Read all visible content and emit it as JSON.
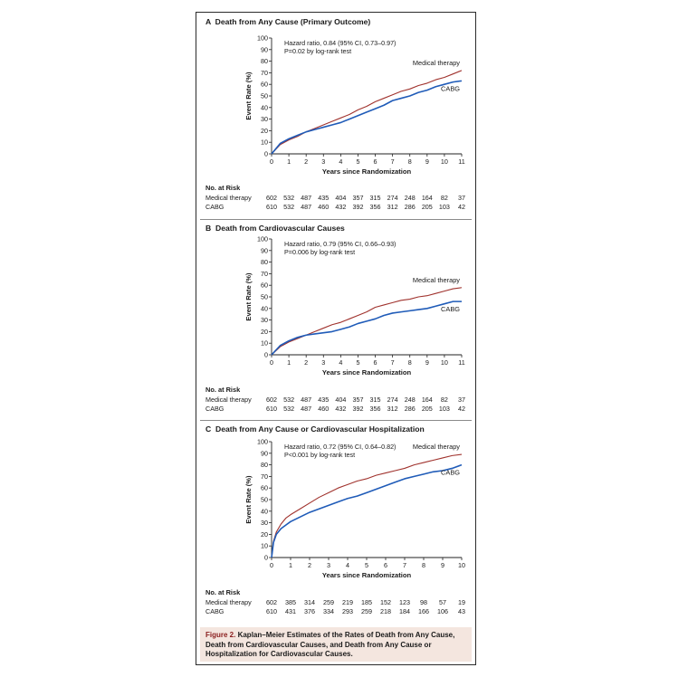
{
  "caption": {
    "label": "Figure 2.",
    "text": "Kaplan–Meier Estimates of the Rates of Death from Any Cause, Death from Cardiovascular Causes, and Death from Any Cause or Hospitalization for Cardiovascular Causes."
  },
  "colors": {
    "medical_therapy": "#a0322d",
    "cabg": "#1f5bb8",
    "caption_bg": "#f4e6df"
  },
  "chart_data": [
    {
      "type": "line",
      "panel_letter": "A",
      "title": "Death from Any Cause (Primary Outcome)",
      "xlabel": "Years since Randomization",
      "ylabel": "Event Rate (%)",
      "xlim": [
        0,
        11
      ],
      "ylim": [
        0,
        100
      ],
      "xticks": [
        "0",
        "1",
        "2",
        "3",
        "4",
        "5",
        "6",
        "7",
        "8",
        "9",
        "10",
        "11"
      ],
      "yticks": [
        "0",
        "10",
        "20",
        "30",
        "40",
        "50",
        "60",
        "70",
        "80",
        "90",
        "100"
      ],
      "grid": false,
      "annotation_lines": [
        "Hazard ratio, 0.84 (95% CI, 0.73–0.97)",
        "P=0.02 by log-rank test"
      ],
      "series": [
        {
          "name": "Medical therapy",
          "label_position": "above-right",
          "x": [
            0,
            0.5,
            1,
            1.5,
            2,
            2.5,
            3,
            3.5,
            4,
            4.5,
            5,
            5.5,
            6,
            6.5,
            7,
            7.5,
            8,
            8.5,
            9,
            9.5,
            10,
            10.5,
            11
          ],
          "y": [
            0,
            8,
            12,
            15,
            19,
            22,
            25,
            28,
            31,
            34,
            38,
            41,
            45,
            48,
            51,
            54,
            56,
            59,
            61,
            64,
            66,
            69,
            72
          ]
        },
        {
          "name": "CABG",
          "label_position": "below-right",
          "x": [
            0,
            0.5,
            1,
            1.5,
            2,
            2.5,
            3,
            3.5,
            4,
            4.5,
            5,
            5.5,
            6,
            6.5,
            7,
            7.5,
            8,
            8.5,
            9,
            9.5,
            10,
            10.5,
            11
          ],
          "y": [
            0,
            9,
            13,
            16,
            19,
            21,
            23,
            25,
            27,
            30,
            33,
            36,
            39,
            42,
            46,
            48,
            50,
            53,
            55,
            58,
            60,
            62,
            63
          ]
        }
      ],
      "at_risk": {
        "title": "No. at Risk",
        "x": [
          0,
          1,
          2,
          3,
          4,
          5,
          6,
          7,
          8,
          9,
          10,
          11
        ],
        "rows": [
          {
            "label": "Medical therapy",
            "values": [
              "602",
              "532",
              "487",
              "435",
              "404",
              "357",
              "315",
              "274",
              "248",
              "164",
              "82",
              "37"
            ]
          },
          {
            "label": "CABG",
            "values": [
              "610",
              "532",
              "487",
              "460",
              "432",
              "392",
              "356",
              "312",
              "286",
              "205",
              "103",
              "42"
            ]
          }
        ]
      }
    },
    {
      "type": "line",
      "panel_letter": "B",
      "title": "Death from Cardiovascular Causes",
      "xlabel": "Years since Randomization",
      "ylabel": "Event Rate (%)",
      "xlim": [
        0,
        11
      ],
      "ylim": [
        0,
        100
      ],
      "xticks": [
        "0",
        "1",
        "2",
        "3",
        "4",
        "5",
        "6",
        "7",
        "8",
        "9",
        "10",
        "11"
      ],
      "yticks": [
        "0",
        "10",
        "20",
        "30",
        "40",
        "50",
        "60",
        "70",
        "80",
        "90",
        "100"
      ],
      "grid": false,
      "annotation_lines": [
        "Hazard ratio, 0.79 (95% CI, 0.66–0.93)",
        "P=0.006 by log-rank test"
      ],
      "series": [
        {
          "name": "Medical therapy",
          "label_position": "above-right",
          "x": [
            0,
            0.5,
            1,
            1.5,
            2,
            2.5,
            3,
            3.5,
            4,
            4.5,
            5,
            5.5,
            6,
            6.5,
            7,
            7.5,
            8,
            8.5,
            9,
            9.5,
            10,
            10.5,
            11
          ],
          "y": [
            0,
            7,
            11,
            14,
            17,
            20,
            23,
            26,
            28,
            31,
            34,
            37,
            41,
            43,
            45,
            47,
            48,
            50,
            51,
            53,
            55,
            57,
            58
          ]
        },
        {
          "name": "CABG",
          "label_position": "below-right",
          "x": [
            0,
            0.5,
            1,
            1.5,
            2,
            2.5,
            3,
            3.5,
            4,
            4.5,
            5,
            5.5,
            6,
            6.5,
            7,
            7.5,
            8,
            8.5,
            9,
            9.5,
            10,
            10.5,
            11
          ],
          "y": [
            0,
            8,
            12,
            15,
            17,
            18,
            19,
            20,
            22,
            24,
            27,
            29,
            31,
            34,
            36,
            37,
            38,
            39,
            40,
            42,
            44,
            46,
            46
          ]
        }
      ],
      "at_risk": {
        "title": "No. at Risk",
        "x": [
          0,
          1,
          2,
          3,
          4,
          5,
          6,
          7,
          8,
          9,
          10,
          11
        ],
        "rows": [
          {
            "label": "Medical therapy",
            "values": [
              "602",
              "532",
              "487",
              "435",
              "404",
              "357",
              "315",
              "274",
              "248",
              "164",
              "82",
              "37"
            ]
          },
          {
            "label": "CABG",
            "values": [
              "610",
              "532",
              "487",
              "460",
              "432",
              "392",
              "356",
              "312",
              "286",
              "205",
              "103",
              "42"
            ]
          }
        ]
      }
    },
    {
      "type": "line",
      "panel_letter": "C",
      "title": "Death from Any Cause or Cardiovascular Hospitalization",
      "xlabel": "Years since Randomization",
      "ylabel": "Event Rate (%)",
      "xlim": [
        0,
        10
      ],
      "ylim": [
        0,
        100
      ],
      "xticks": [
        "0",
        "1",
        "2",
        "3",
        "4",
        "5",
        "6",
        "7",
        "8",
        "9",
        "10"
      ],
      "yticks": [
        "0",
        "10",
        "20",
        "30",
        "40",
        "50",
        "60",
        "70",
        "80",
        "90",
        "100"
      ],
      "grid": false,
      "annotation_lines": [
        "Hazard ratio, 0.72 (95% CI, 0.64–0.82)",
        "P<0.001 by log-rank test"
      ],
      "series": [
        {
          "name": "Medical therapy",
          "label_position": "above-right",
          "x": [
            0,
            0.1,
            0.25,
            0.5,
            0.75,
            1,
            1.5,
            2,
            2.5,
            3,
            3.5,
            4,
            4.5,
            5,
            5.5,
            6,
            6.5,
            7,
            7.5,
            8,
            8.5,
            9,
            9.5,
            10
          ],
          "y": [
            0,
            14,
            22,
            29,
            34,
            37,
            42,
            47,
            52,
            56,
            60,
            63,
            66,
            68,
            71,
            73,
            75,
            77,
            80,
            82,
            84,
            86,
            88,
            89
          ]
        },
        {
          "name": "CABG",
          "label_position": "below-right",
          "x": [
            0,
            0.1,
            0.25,
            0.5,
            0.75,
            1,
            1.5,
            2,
            2.5,
            3,
            3.5,
            4,
            4.5,
            5,
            5.5,
            6,
            6.5,
            7,
            7.5,
            8,
            8.5,
            9,
            9.5,
            10
          ],
          "y": [
            0,
            13,
            20,
            25,
            28,
            31,
            35,
            39,
            42,
            45,
            48,
            51,
            53,
            56,
            59,
            62,
            65,
            68,
            70,
            72,
            74,
            75,
            77,
            80
          ]
        }
      ],
      "at_risk": {
        "title": "No. at Risk",
        "x": [
          0,
          1,
          2,
          3,
          4,
          5,
          6,
          7,
          8,
          9,
          10
        ],
        "rows": [
          {
            "label": "Medical therapy",
            "values": [
              "602",
              "385",
              "314",
              "259",
              "219",
              "185",
              "152",
              "123",
              "98",
              "57",
              "19"
            ]
          },
          {
            "label": "CABG",
            "values": [
              "610",
              "431",
              "376",
              "334",
              "293",
              "259",
              "218",
              "184",
              "166",
              "106",
              "43"
            ]
          }
        ]
      }
    }
  ]
}
